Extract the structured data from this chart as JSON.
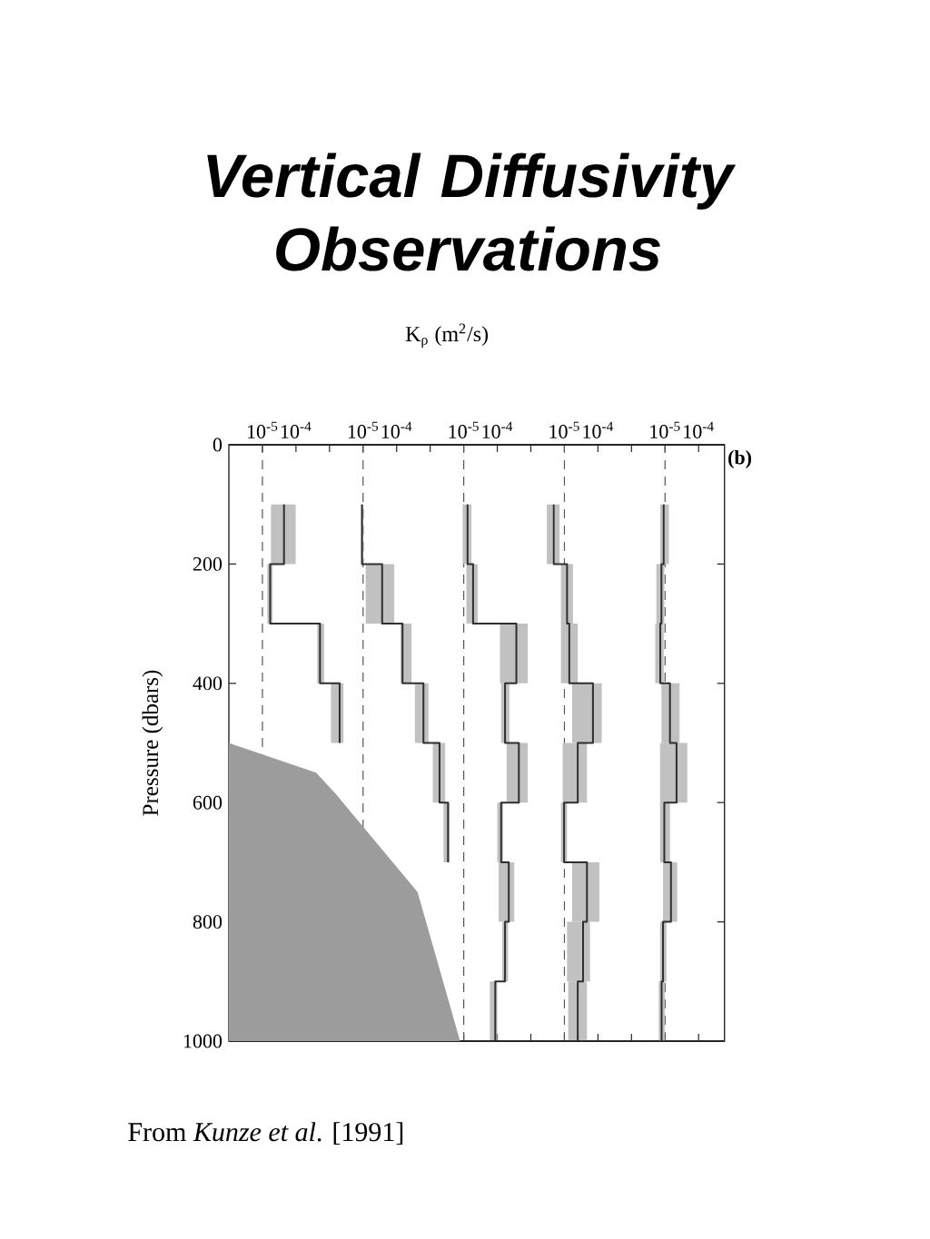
{
  "chart_data": [
    {
      "type": "line",
      "title": "Vertical Diffusivity Observations",
      "xlabel": "K$_{ρ}$ (m$^{2}$/s)",
      "ylabel": "Pressure (dbars)",
      "annotations": [
        "(b)",
        "From *Kunze et al*. [1991]"
      ],
      "log": "x",
      "ylim": [
        1000,
        0
      ],
      "yticks": [
        0,
        200,
        400,
        600,
        800,
        1000
      ],
      "xlim": [
        1e-06,
        590000000.0
      ],
      "xticks": [
        {
          "value": 1e-05,
          "label": "10$^{-5}$"
        },
        {
          "value": 0.0001,
          "label": "10$^{-4}$"
        },
        {
          "value": 0.001,
          "label": null
        }
      ],
      "ref_lines": [
        {
          "axis": "x",
          "value": 1e-05,
          "color": "#555555",
          "line_style": "dashed"
        }
      ],
      "series": [
        {
          "color": "#2f2f2f",
          "x": [
            4.4e-05,
            4.4e-05,
            4.4e-05,
            1.7e-05,
            1.7e-05,
            1.7e-05,
            0.00052,
            0.00052,
            0.00052,
            0.002,
            0.002,
            0.002
          ],
          "values": [
            100,
            150,
            200,
            200,
            250,
            300,
            300,
            350,
            400,
            400,
            450,
            500
          ],
          "xerrors": [
            null,
            [
              1.8e-05,
              9.8e-05
            ],
            null,
            null,
            [
              1.4e-05,
              2e-05
            ],
            null,
            null,
            [
              0.00043,
              0.00069
            ],
            null,
            null,
            [
              0.0011,
              0.0026
            ],
            null
          ]
        },
        {
          "type": "area",
          "color": "#9c9c9c",
          "x": [
            1e-06,
            1e-06,
            0.0004,
            0.0015,
            0.42,
            7.8
          ],
          "values": [
            1000,
            500,
            550,
            585,
            750,
            1000
          ]
        }
      ]
    },
    {
      "type": "line",
      "log": "x",
      "tick_labels": "x",
      "ylim": [
        1000,
        0
      ],
      "xlim": [
        1e-09,
        590000.0
      ],
      "xticks": [
        {
          "value": 1e-05,
          "label": "10$^{-5}$"
        },
        {
          "value": 0.0001,
          "label": "10$^{-4}$"
        },
        {
          "value": 0.001,
          "label": null
        }
      ],
      "ref_lines": [
        {
          "axis": "x",
          "value": 1e-05,
          "color": "#555555",
          "line_style": "dashed"
        }
      ],
      "series": [
        {
          "color": "#2f2f2f",
          "x": [
            9.3e-06,
            9.3e-06,
            9.3e-06,
            3.7e-05,
            3.7e-05,
            3.7e-05,
            0.00015,
            0.00015,
            0.00015,
            0.00063,
            0.00063,
            0.00063,
            0.0019,
            0.0019,
            0.0019,
            0.0034,
            0.0034,
            0.0034
          ],
          "values": [
            100,
            150,
            200,
            200,
            250,
            300,
            300,
            350,
            400,
            400,
            450,
            500,
            500,
            550,
            600,
            600,
            650,
            700
          ],
          "xerrors": [
            null,
            [
              8.7e-06,
              1e-05
            ],
            null,
            null,
            [
              1.2e-05,
              8.5e-05
            ],
            null,
            null,
            [
              0.00013,
              0.00028
            ],
            null,
            null,
            [
              0.00035,
              0.00089
            ],
            null,
            null,
            [
              0.0012,
              0.0028
            ],
            null,
            null,
            [
              0.0025,
              0.0038
            ],
            null
          ]
        }
      ]
    },
    {
      "type": "line",
      "log": "x",
      "tick_labels": "x",
      "ylim": [
        1000,
        0
      ],
      "xlim": [
        1e-12,
        590
      ],
      "xticks": [
        {
          "value": 1e-05,
          "label": "10$^{-5}$"
        },
        {
          "value": 0.0001,
          "label": "10$^{-4}$"
        },
        {
          "value": 0.001,
          "label": null
        }
      ],
      "ref_lines": [
        {
          "axis": "x",
          "value": 1e-05,
          "color": "#555555",
          "line_style": "dashed"
        }
      ],
      "series": [
        {
          "color": "#2f2f2f",
          "x": [
            1.3e-05,
            1.3e-05,
            1.3e-05,
            1.9e-05,
            1.9e-05,
            1.9e-05,
            0.00037,
            0.00037,
            0.00037,
            0.00017,
            0.00017,
            0.00017,
            0.00044,
            0.00044,
            0.00044,
            0.00013,
            0.00013,
            0.00013,
            0.00022,
            0.00022,
            0.00022,
            0.00017,
            0.00017,
            0.00017,
            8.7e-05,
            8.7e-05,
            8.7e-05
          ],
          "values": [
            100,
            150,
            200,
            200,
            250,
            300,
            300,
            350,
            400,
            400,
            450,
            500,
            500,
            550,
            600,
            600,
            650,
            700,
            700,
            750,
            800,
            800,
            850,
            900,
            900,
            950,
            1000
          ],
          "xerrors": [
            null,
            [
              9.3e-06,
              1.7e-05
            ],
            null,
            null,
            [
              1.2e-05,
              2.6e-05
            ],
            null,
            null,
            [
              0.00012,
              0.00081
            ],
            null,
            null,
            [
              0.00013,
              0.00023
            ],
            null,
            null,
            [
              0.00019,
              0.00081
            ],
            null,
            null,
            [
              0.0001,
              0.00015
            ],
            null,
            null,
            [
              0.00011,
              0.00032
            ],
            null,
            null,
            [
              0.00014,
              0.00021
            ],
            null,
            null,
            [
              6e-05,
              0.0001
            ],
            null
          ]
        }
      ]
    },
    {
      "type": "line",
      "log": "x",
      "tick_labels": "x",
      "ylim": [
        1000,
        0
      ],
      "xlim": [
        1e-15,
        0.59
      ],
      "xticks": [
        {
          "value": 1e-05,
          "label": "10$^{-5}$"
        },
        {
          "value": 0.0001,
          "label": "10$^{-4}$"
        },
        {
          "value": 0.001,
          "label": null
        }
      ],
      "ref_lines": [
        {
          "axis": "x",
          "value": 1e-05,
          "color": "#555555",
          "line_style": "dashed"
        }
      ],
      "series": [
        {
          "color": "#2f2f2f",
          "x": [
            4.8e-06,
            4.8e-06,
            4.8e-06,
            1.2e-05,
            1.2e-05,
            1.2e-05,
            1.4e-05,
            1.4e-05,
            1.4e-05,
            7.1e-05,
            7.1e-05,
            7.1e-05,
            2.5e-05,
            2.5e-05,
            2.5e-05,
            9.8e-06,
            9.8e-06,
            9.8e-06,
            4.7e-05,
            4.7e-05,
            4.7e-05,
            3.6e-05,
            3.6e-05,
            3.6e-05,
            2.5e-05,
            2.5e-05,
            2.5e-05
          ],
          "values": [
            100,
            150,
            200,
            200,
            250,
            300,
            300,
            350,
            400,
            400,
            450,
            500,
            500,
            550,
            600,
            600,
            650,
            700,
            700,
            750,
            800,
            800,
            850,
            900,
            900,
            950,
            1000
          ],
          "xerrors": [
            null,
            [
              3e-06,
              7.2e-06
            ],
            null,
            null,
            [
              7.9e-06,
              1.8e-05
            ],
            null,
            null,
            [
              7.9e-06,
              2.5e-05
            ],
            null,
            null,
            [
              1.7e-05,
              0.00013
            ],
            null,
            null,
            [
              8.9e-06,
              4.7e-05
            ],
            null,
            null,
            [
              7.9e-06,
              1.2e-05
            ],
            null,
            null,
            [
              1.7e-05,
              0.00011
            ],
            null,
            null,
            [
              1.2e-05,
              5.8e-05
            ],
            null,
            null,
            [
              1.3e-05,
              4.7e-05
            ],
            null
          ]
        }
      ]
    },
    {
      "type": "line",
      "log": "x",
      "tick_labels": "x",
      "ylim": [
        1000,
        0
      ],
      "xlim": [
        1e-18,
        0.00059
      ],
      "xticks": [
        {
          "value": 1e-05,
          "label": "10$^{-5}$"
        },
        {
          "value": 0.0001,
          "label": "10$^{-4}$"
        }
      ],
      "ref_lines": [
        {
          "axis": "x",
          "value": 1e-05,
          "color": "#555555",
          "line_style": "dashed"
        }
      ],
      "series": [
        {
          "color": "#2f2f2f",
          "x": [
            9.1e-06,
            9.1e-06,
            9.1e-06,
            7.8e-06,
            7.8e-06,
            7.8e-06,
            7.2e-06,
            7.2e-06,
            7.2e-06,
            1.4e-05,
            1.4e-05,
            1.4e-05,
            2.2e-05,
            2.2e-05,
            2.2e-05,
            9.5e-06,
            9.5e-06,
            9.5e-06,
            1.5e-05,
            1.5e-05,
            1.5e-05,
            8.7e-06,
            8.7e-06,
            8.7e-06,
            7.9e-06,
            7.9e-06,
            7.9e-06
          ],
          "values": [
            100,
            150,
            200,
            200,
            250,
            300,
            300,
            350,
            400,
            400,
            450,
            500,
            500,
            550,
            600,
            600,
            650,
            700,
            700,
            750,
            800,
            800,
            850,
            900,
            900,
            950,
            1000
          ],
          "xerrors": [
            null,
            [
              7.2e-06,
              1.3e-05
            ],
            null,
            null,
            [
              5.5e-06,
              9.5e-06
            ],
            null,
            null,
            [
              5.1e-06,
              9.1e-06
            ],
            null,
            null,
            [
              7.8e-06,
              2.7e-05
            ],
            null,
            null,
            [
              7.1e-06,
              4.6e-05
            ],
            null,
            null,
            [
              7.1e-06,
              1.4e-05
            ],
            null,
            null,
            [
              8.7e-06,
              2.3e-05
            ],
            null,
            null,
            [
              7.1e-06,
              1.1e-05
            ],
            null,
            null,
            [
              6.5e-06,
              9.8e-06
            ],
            null
          ]
        }
      ]
    }
  ]
}
